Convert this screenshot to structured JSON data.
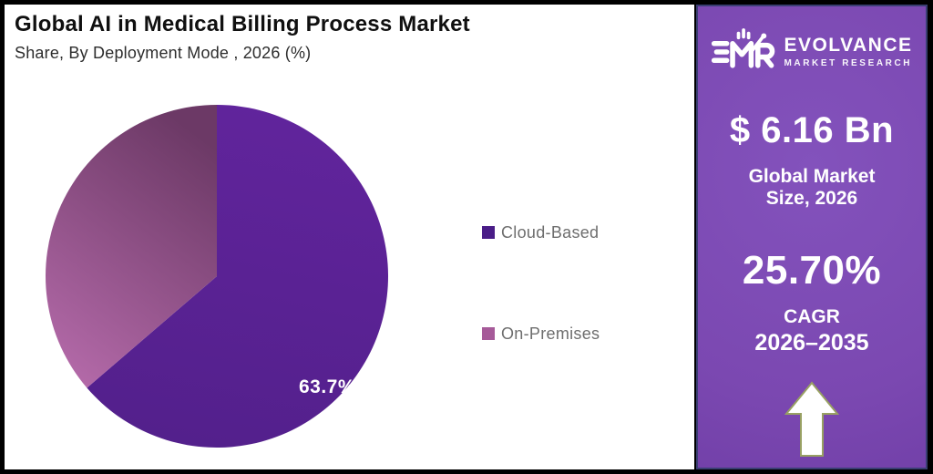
{
  "header": {
    "title": "Global AI in Medical Billing Process Market",
    "subtitle": "Share, By Deployment Mode , 2026 (%)"
  },
  "chart_data": {
    "type": "pie",
    "title": "Global AI in Medical Billing Process Market",
    "subtitle": "Share, By Deployment Mode , 2026 (%)",
    "categories": [
      "Cloud-Based",
      "On-Premises"
    ],
    "values": [
      63.7,
      36.3
    ],
    "unit": "%",
    "data_label": "63.7%",
    "start_angle_deg": 0,
    "direction": "clockwise",
    "legend_position": "right",
    "colors": {
      "cloud_based_start": "#61249c",
      "cloud_based_end": "#53208c",
      "on_premises_start": "#6c3966",
      "on_premises_end": "#b46aa9"
    }
  },
  "legend": {
    "items": [
      {
        "label": "Cloud-Based",
        "color": "#4a1d87"
      },
      {
        "label": "On-Premises",
        "color": "#a65a99"
      }
    ]
  },
  "sidebar": {
    "brand": {
      "name": "EVOLVANCE",
      "tagline": "MARKET RESEARCH"
    },
    "market_size": {
      "value": "$ 6.16 Bn",
      "label_line1": "Global Market",
      "label_line2": "Size, 2026"
    },
    "cagr": {
      "value": "25.70%",
      "label_line1": "CAGR",
      "label_line2": "2026–2035"
    },
    "arrow_icon": "up-arrow",
    "colors": {
      "background": "#7b48b1",
      "border": "#3a3e72"
    }
  }
}
